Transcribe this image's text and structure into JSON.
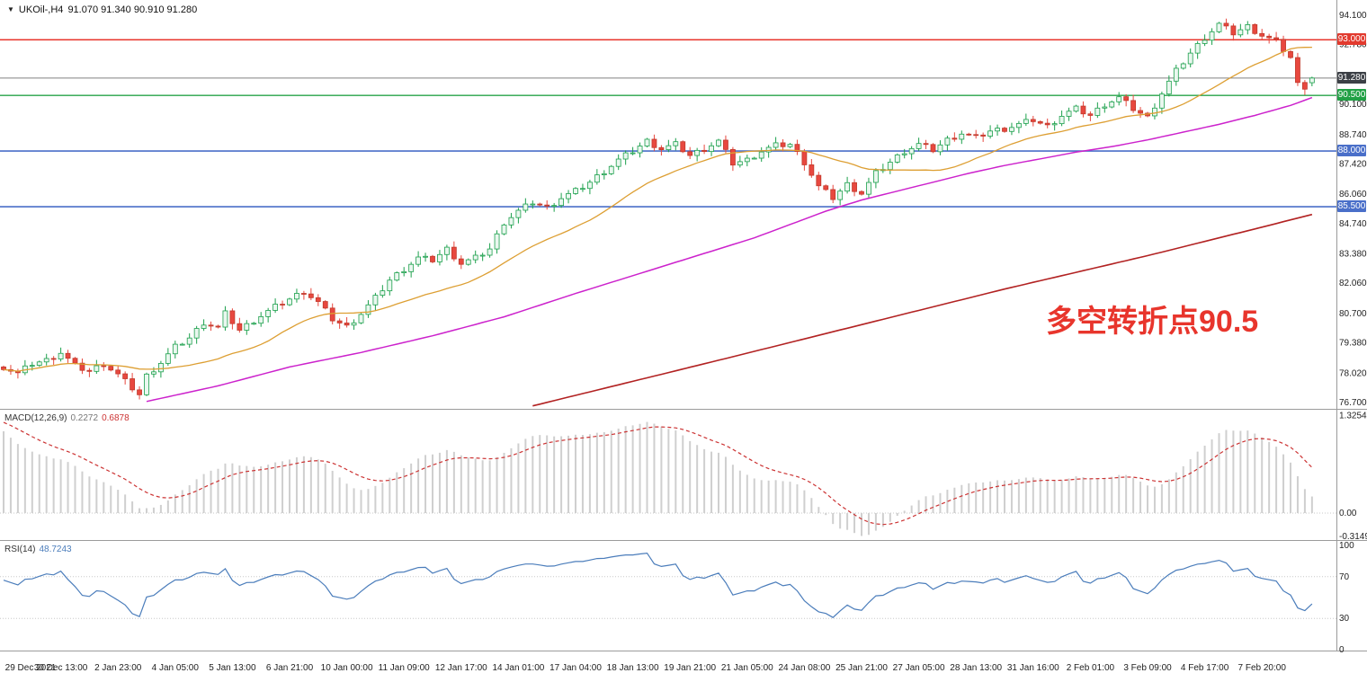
{
  "window": {
    "symbol_label": "UKOil-,H4",
    "ohlc_label": "91.070 91.340 90.910 91.280"
  },
  "annotation": {
    "text": "多空转折点90.5",
    "color": "#e8352c"
  },
  "indicators": {
    "macd": {
      "label": "MACD(12,26,9)",
      "value_main": "0.2272",
      "value_signal": "0.6878",
      "axis_labels": [
        "1.3254",
        "0.00",
        "-0.3149"
      ]
    },
    "rsi": {
      "label": "RSI(14)",
      "value": "48.7243",
      "axis_labels": [
        "100",
        "70",
        "30",
        "0"
      ]
    }
  },
  "price_tags": [
    {
      "text": "93.000",
      "value": 93.0,
      "color": "#e23a2e"
    },
    {
      "text": "91.280",
      "value": 91.28,
      "color": "#3c4046"
    },
    {
      "text": "90.500",
      "value": 90.5,
      "color": "#21a045"
    },
    {
      "text": "88.000",
      "value": 88.0,
      "color": "#4a6fc9"
    },
    {
      "text": "85.500",
      "value": 85.5,
      "color": "#4a6fc9"
    }
  ],
  "chart_data": {
    "type": "candlestick",
    "symbol": "UKOil-",
    "timeframe": "H4",
    "title": "UKOil-,H4 91.070 91.340 90.910 91.280",
    "current_candle": {
      "open": 91.07,
      "high": 91.34,
      "low": 90.91,
      "close": 91.28
    },
    "candle_count": 184,
    "candles_per_x_label": 8,
    "colors": {
      "up_stroke": "#1ca04c",
      "up_fill": "#eaf7ef",
      "down_stroke": "#c0392b",
      "down_fill": "#e8483f",
      "ma_fast": "#dd9f33",
      "ma_mid": "#cc22cc",
      "ma_slow": "#b22222",
      "macd_hist": "#cfcfcf",
      "macd_signal": "#cc3333",
      "rsi_line": "#4b7dbb"
    },
    "y_axis": {
      "min": 76.42,
      "max": 94.79,
      "tick_labels": [
        "94.100",
        "92.780",
        "90.100",
        "88.740",
        "87.420",
        "86.060",
        "84.740",
        "83.380",
        "82.060",
        "80.700",
        "79.380",
        "78.020",
        "76.700"
      ]
    },
    "x_labels": [
      "29 Dec 2021",
      "30 Dec 13:00",
      "2 Jan 23:00",
      "4 Jan 05:00",
      "5 Jan 13:00",
      "6 Jan 21:00",
      "10 Jan 00:00",
      "11 Jan 09:00",
      "12 Jan 17:00",
      "14 Jan 01:00",
      "17 Jan 04:00",
      "18 Jan 13:00",
      "19 Jan 21:00",
      "21 Jan 05:00",
      "24 Jan 08:00",
      "25 Jan 21:00",
      "27 Jan 05:00",
      "28 Jan 13:00",
      "31 Jan 16:00",
      "2 Feb 01:00",
      "3 Feb 09:00",
      "4 Feb 17:00",
      "7 Feb 20:00"
    ],
    "horizontal_lines": [
      {
        "value": 93.0,
        "color": "#e8352c",
        "width": 1.4
      },
      {
        "value": 90.5,
        "color": "#27a348",
        "width": 1.4
      },
      {
        "value": 88.0,
        "color": "#4a6fc9",
        "width": 1.6
      },
      {
        "value": 85.5,
        "color": "#4a6fc9",
        "width": 1.6
      },
      {
        "value": 91.28,
        "color": "#808080",
        "width": 1.0
      }
    ],
    "close_anchors": [
      [
        0,
        78.3
      ],
      [
        2,
        78.0
      ],
      [
        4,
        78.45
      ],
      [
        6,
        78.6
      ],
      [
        8,
        78.95
      ],
      [
        10,
        78.35
      ],
      [
        12,
        78.1
      ],
      [
        14,
        78.45
      ],
      [
        16,
        77.95
      ],
      [
        18,
        77.35
      ],
      [
        19,
        77.05
      ],
      [
        20,
        77.9
      ],
      [
        22,
        78.5
      ],
      [
        24,
        79.2
      ],
      [
        26,
        79.6
      ],
      [
        28,
        80.3
      ],
      [
        30,
        80.05
      ],
      [
        31,
        80.7
      ],
      [
        33,
        79.95
      ],
      [
        36,
        80.6
      ],
      [
        38,
        81.0
      ],
      [
        40,
        81.35
      ],
      [
        42,
        81.7
      ],
      [
        44,
        81.2
      ],
      [
        46,
        80.45
      ],
      [
        48,
        80.1
      ],
      [
        50,
        80.7
      ],
      [
        52,
        81.4
      ],
      [
        54,
        82.2
      ],
      [
        56,
        82.7
      ],
      [
        58,
        83.2
      ],
      [
        60,
        83.1
      ],
      [
        62,
        83.6
      ],
      [
        64,
        82.95
      ],
      [
        66,
        83.2
      ],
      [
        68,
        83.6
      ],
      [
        70,
        84.8
      ],
      [
        72,
        85.3
      ],
      [
        74,
        85.7
      ],
      [
        76,
        85.45
      ],
      [
        78,
        85.9
      ],
      [
        80,
        86.2
      ],
      [
        82,
        86.6
      ],
      [
        84,
        87.1
      ],
      [
        86,
        87.6
      ],
      [
        88,
        88.0
      ],
      [
        90,
        88.45
      ],
      [
        92,
        88.1
      ],
      [
        94,
        88.3
      ],
      [
        96,
        87.8
      ],
      [
        98,
        88.1
      ],
      [
        100,
        88.45
      ],
      [
        102,
        87.45
      ],
      [
        104,
        87.6
      ],
      [
        106,
        88.0
      ],
      [
        108,
        88.25
      ],
      [
        110,
        88.3
      ],
      [
        112,
        87.5
      ],
      [
        114,
        86.4
      ],
      [
        116,
        85.9
      ],
      [
        118,
        86.5
      ],
      [
        120,
        86.1
      ],
      [
        122,
        87.0
      ],
      [
        124,
        87.5
      ],
      [
        126,
        88.0
      ],
      [
        128,
        88.3
      ],
      [
        130,
        88.05
      ],
      [
        132,
        88.5
      ],
      [
        134,
        88.8
      ],
      [
        136,
        88.6
      ],
      [
        138,
        88.9
      ],
      [
        140,
        89.0
      ],
      [
        142,
        89.2
      ],
      [
        144,
        89.4
      ],
      [
        146,
        89.1
      ],
      [
        148,
        89.6
      ],
      [
        150,
        89.9
      ],
      [
        152,
        89.6
      ],
      [
        154,
        90.1
      ],
      [
        156,
        90.4
      ],
      [
        158,
        89.9
      ],
      [
        160,
        89.5
      ],
      [
        162,
        90.6
      ],
      [
        164,
        91.6
      ],
      [
        166,
        92.4
      ],
      [
        168,
        93.1
      ],
      [
        170,
        93.7
      ],
      [
        172,
        93.3
      ],
      [
        174,
        93.6
      ],
      [
        176,
        93.2
      ],
      [
        178,
        92.9
      ],
      [
        180,
        92.2
      ],
      [
        181,
        91.0
      ],
      [
        182,
        90.9
      ],
      [
        183,
        91.28
      ]
    ],
    "ma_fast_period": 20,
    "ma_mid_anchors": [
      [
        20,
        76.75
      ],
      [
        30,
        77.45
      ],
      [
        40,
        78.3
      ],
      [
        50,
        78.95
      ],
      [
        60,
        79.7
      ],
      [
        70,
        80.55
      ],
      [
        80,
        81.6
      ],
      [
        90,
        82.6
      ],
      [
        100,
        83.6
      ],
      [
        105,
        84.1
      ],
      [
        110,
        84.7
      ],
      [
        115,
        85.3
      ],
      [
        120,
        85.8
      ],
      [
        125,
        86.2
      ],
      [
        130,
        86.6
      ],
      [
        135,
        87.0
      ],
      [
        140,
        87.35
      ],
      [
        145,
        87.65
      ],
      [
        150,
        87.95
      ],
      [
        155,
        88.2
      ],
      [
        160,
        88.5
      ],
      [
        165,
        88.85
      ],
      [
        170,
        89.2
      ],
      [
        175,
        89.6
      ],
      [
        180,
        90.05
      ],
      [
        183,
        90.4
      ]
    ],
    "ma_slow_anchors": [
      [
        74,
        76.55
      ],
      [
        100,
        78.6
      ],
      [
        120,
        80.2
      ],
      [
        140,
        81.8
      ],
      [
        160,
        83.3
      ],
      [
        175,
        84.5
      ],
      [
        183,
        85.15
      ]
    ],
    "macd": {
      "fast": 12,
      "slow": 26,
      "signal": 9,
      "y_max": 1.3254,
      "y_min": -0.3149,
      "last_hist": 0.2272,
      "last_signal": 0.6878
    },
    "rsi": {
      "period": 14,
      "levels": [
        70,
        30
      ],
      "last_value": 48.7243
    }
  }
}
